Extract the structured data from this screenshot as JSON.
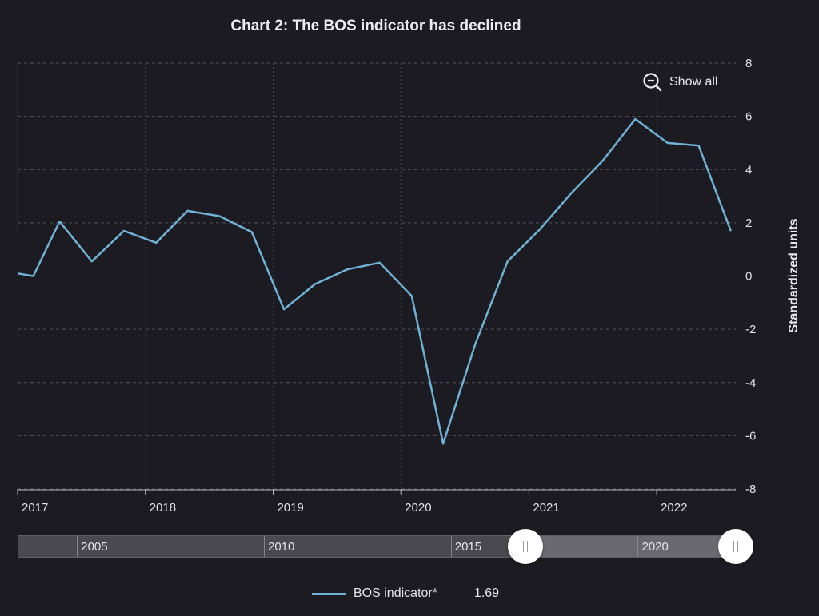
{
  "chart_data": {
    "type": "line",
    "title": "Chart 2: The BOS indicator has declined",
    "ylabel": "Standardized units",
    "ylim": [
      -8,
      8
    ],
    "yticks": [
      "8",
      "6",
      "4",
      "2",
      "0",
      "-2",
      "-4",
      "-6",
      "-8"
    ],
    "y_tick_values": [
      8,
      6,
      4,
      2,
      0,
      -2,
      -4,
      -6,
      -8
    ],
    "xlim": [
      "2017-01-01",
      "2022-08-15"
    ],
    "x_tick_labels": [
      "2017",
      "2018",
      "2019",
      "2020",
      "2021",
      "2022"
    ],
    "x_tick_dates": [
      "2017-01-01",
      "2018-01-01",
      "2019-01-01",
      "2020-01-01",
      "2021-01-01",
      "2022-01-01"
    ],
    "grid": true,
    "series": [
      {
        "name": "BOS indicator*",
        "color": "#6fb2d6",
        "x": [
          "2017-01-01",
          "2017-02-15",
          "2017-05-01",
          "2017-08-01",
          "2017-11-01",
          "2018-02-01",
          "2018-05-01",
          "2018-08-01",
          "2018-11-01",
          "2019-02-01",
          "2019-05-01",
          "2019-08-01",
          "2019-11-01",
          "2020-02-01",
          "2020-05-01",
          "2020-08-01",
          "2020-11-01",
          "2021-02-01",
          "2021-05-01",
          "2021-08-01",
          "2021-11-01",
          "2022-02-01",
          "2022-05-01",
          "2022-08-01"
        ],
        "values": [
          0.1,
          0.0,
          2.05,
          0.55,
          1.7,
          1.25,
          2.45,
          2.25,
          1.65,
          -1.25,
          -0.3,
          0.25,
          0.5,
          -0.75,
          -6.3,
          -2.55,
          0.55,
          1.75,
          3.1,
          4.35,
          5.9,
          5.0,
          4.9,
          1.69
        ]
      }
    ]
  },
  "zoom_button": {
    "icon": "zoom-out-icon",
    "label": "Show all"
  },
  "navigator": {
    "labels": [
      "2005",
      "2010",
      "2015",
      "2020"
    ],
    "range": [
      "2003-06-01",
      "2022-08-15"
    ],
    "label_dates": [
      "2005-01-01",
      "2010-01-01",
      "2015-01-01",
      "2020-01-01"
    ],
    "selected": [
      "2017-01-01",
      "2022-08-15"
    ]
  },
  "legend": {
    "name": "BOS indicator*",
    "value": "1.69",
    "color": "#6fb2d6"
  }
}
